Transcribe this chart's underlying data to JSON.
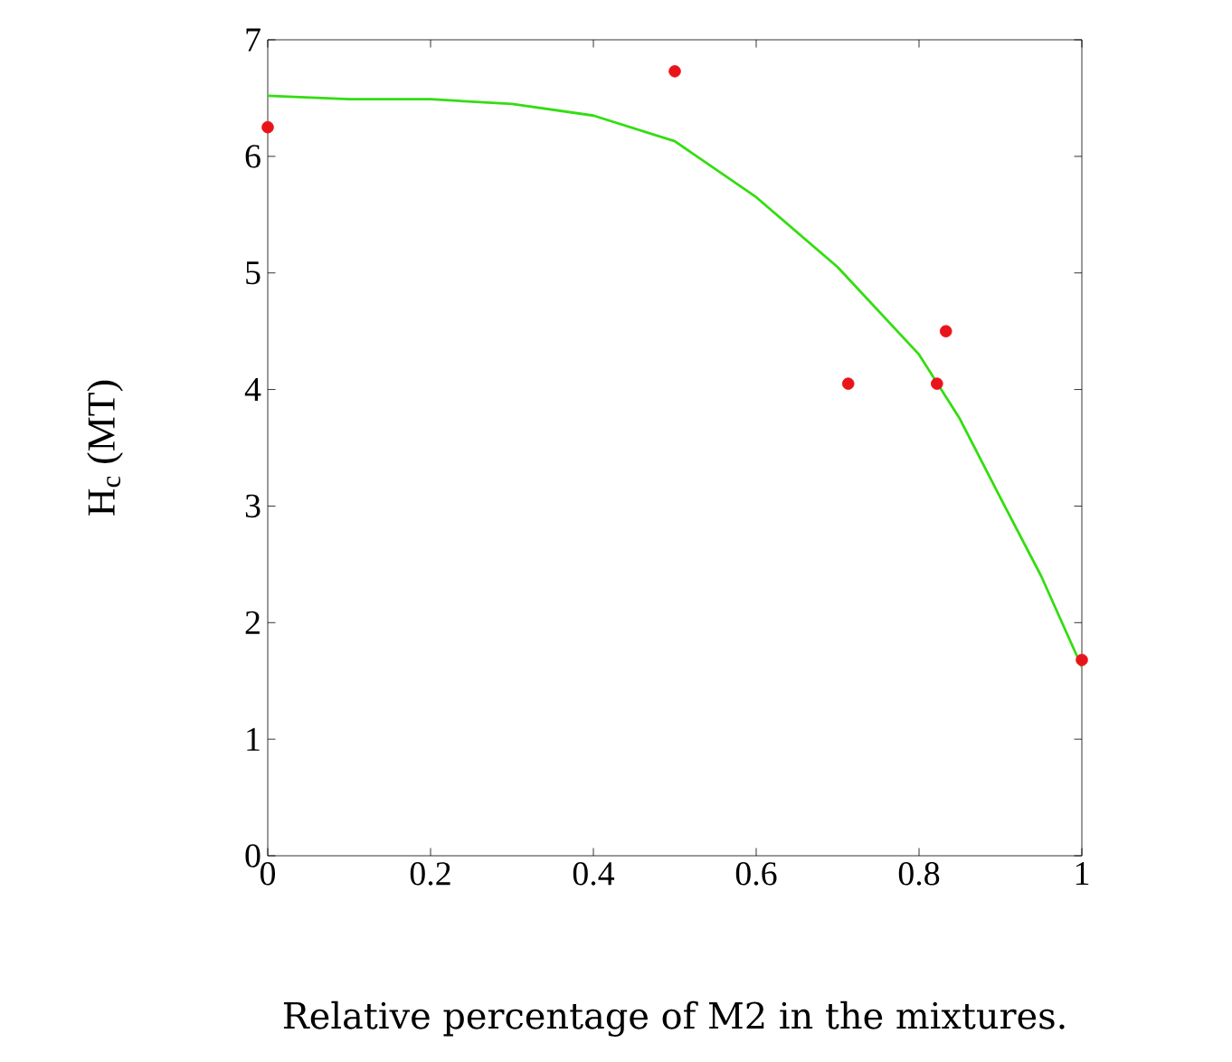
{
  "chart_data": {
    "type": "scatter",
    "xlabel": "Relative percentage of M2 in the mixtures.",
    "ylabel": "H$_{c}$ (MT)",
    "xlim": [
      0,
      1
    ],
    "ylim": [
      0,
      7
    ],
    "xticks": [
      0,
      0.2,
      0.4,
      0.6,
      0.8,
      1
    ],
    "yticks": [
      0,
      1,
      2,
      3,
      4,
      5,
      6,
      7
    ],
    "grid": false,
    "series": [
      {
        "color": "#e8141a",
        "marker": "circle",
        "x": [
          0,
          0.5,
          0.713,
          0.822,
          0.833,
          1
        ],
        "values": [
          6.25,
          6.73,
          4.05,
          4.05,
          4.5,
          1.68
        ]
      },
      {
        "type": "line",
        "color": "#33dd11",
        "marker": "none",
        "line_style": "solid",
        "x": [
          0,
          0.1,
          0.2,
          0.3,
          0.4,
          0.5,
          0.6,
          0.7,
          0.8,
          0.85,
          0.9,
          0.95,
          1
        ],
        "values": [
          6.52,
          6.49,
          6.49,
          6.45,
          6.35,
          6.13,
          5.65,
          5.05,
          4.3,
          3.75,
          3.07,
          2.4,
          1.62
        ]
      }
    ]
  }
}
